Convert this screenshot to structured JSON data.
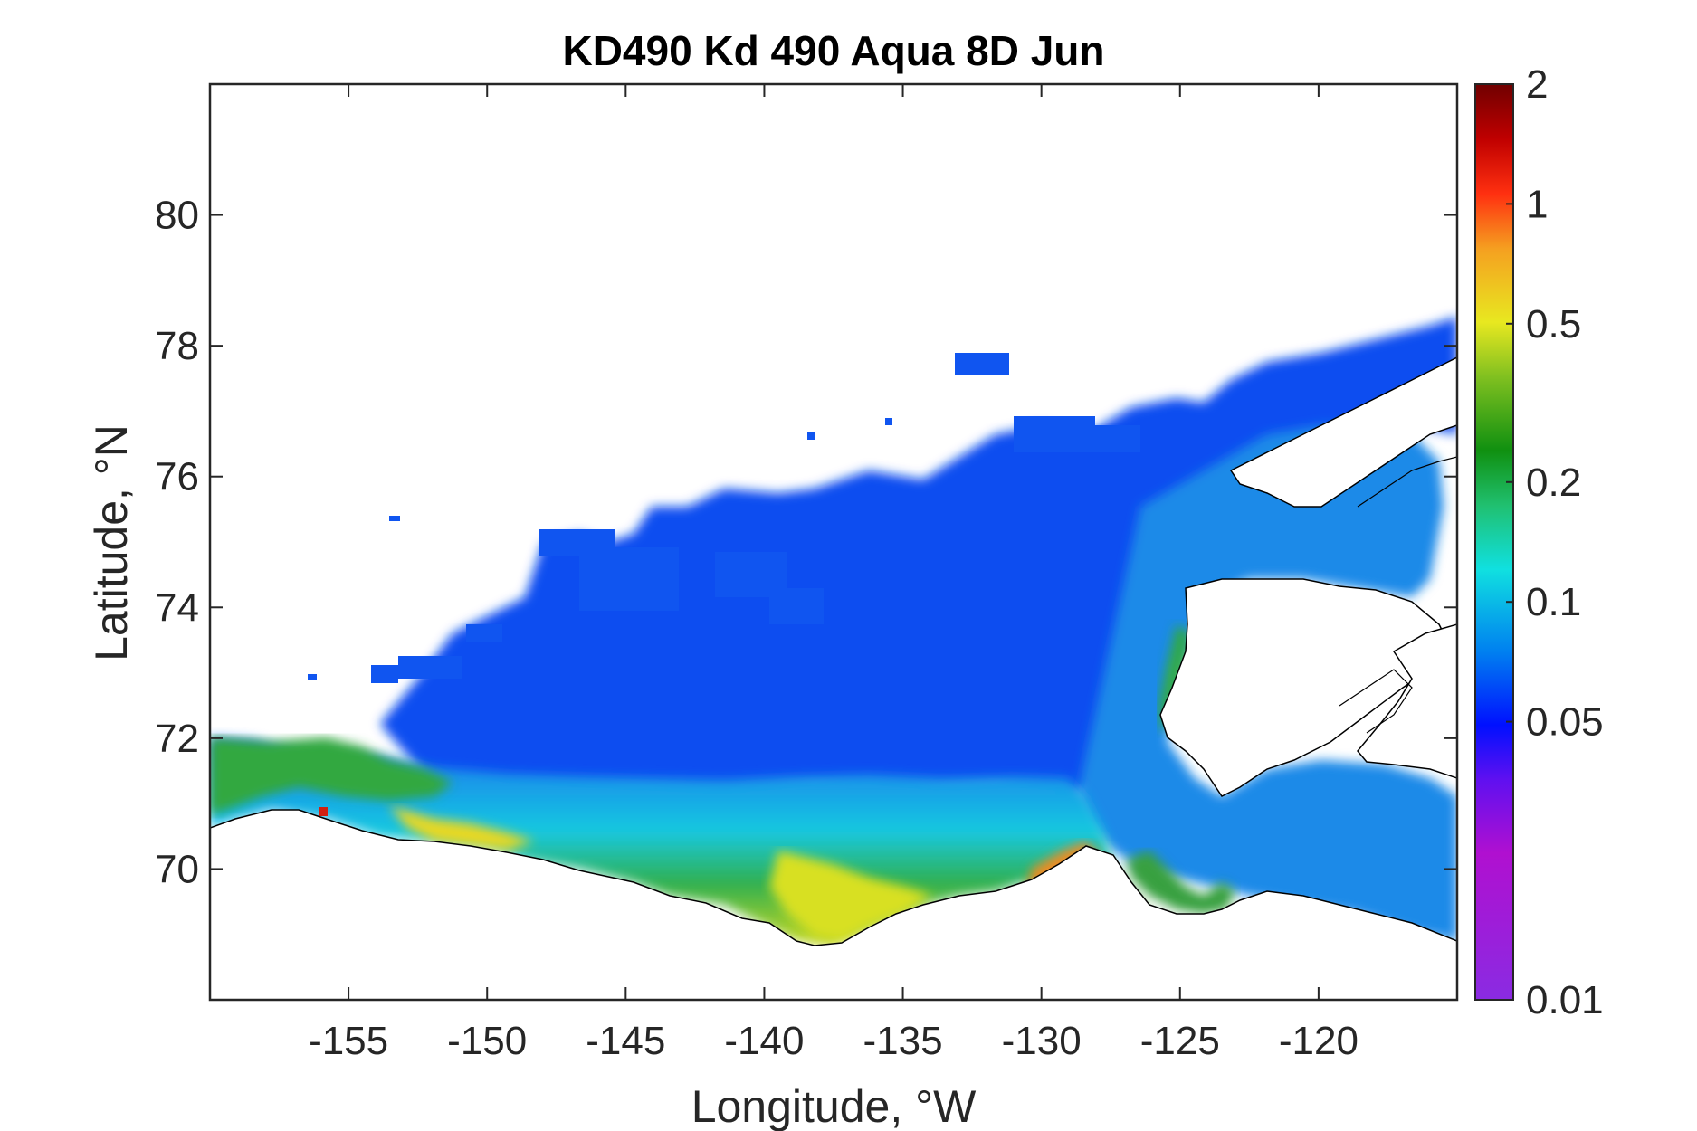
{
  "title": "KD490 Kd 490 Aqua 8D Jun",
  "xaxis": {
    "label": "Longitude, °W",
    "ticks": [
      "-155",
      "-150",
      "-145",
      "-140",
      "-135",
      "-130",
      "-125",
      "-120"
    ],
    "tick_values": [
      -155,
      -150,
      -145,
      -140,
      -135,
      -130,
      -125,
      -120
    ],
    "range": [
      -160,
      -115
    ]
  },
  "yaxis": {
    "label": "Latitude, °N",
    "ticks": [
      "70",
      "72",
      "74",
      "76",
      "78",
      "80"
    ],
    "tick_values": [
      70,
      72,
      74,
      76,
      78,
      80
    ],
    "range": [
      68,
      82
    ]
  },
  "colorbar": {
    "scale": "log",
    "range": [
      0.01,
      2
    ],
    "ticks": [
      "2",
      "1",
      "0.5",
      "0.2",
      "0.1",
      "0.05",
      "0.01"
    ],
    "tick_values": [
      2,
      1,
      0.5,
      0.2,
      0.1,
      0.05,
      0.01
    ],
    "colormap": "rainbow (violet-blue-cyan-green-yellow-orange-red-darkred)"
  },
  "colors": {
    "low_violet": "#8a2be2",
    "blue": "#0a4af0",
    "cyan": "#19d9e0",
    "green": "#22b040",
    "yellow": "#e8e820",
    "orange": "#f5a020",
    "red": "#e02010",
    "dark_red": "#7a0000",
    "coastline": "#000000"
  },
  "chart_data": {
    "type": "heatmap",
    "variable": "KD490 Kd 490",
    "title": "KD490 Kd 490 Aqua 8D Jun",
    "xlabel": "Longitude, °W",
    "ylabel": "Latitude, °N",
    "xlim": [
      -160,
      -115
    ],
    "ylim": [
      68,
      82
    ],
    "value_scale": "log",
    "value_range": [
      0.01,
      2
    ],
    "regions": [
      {
        "lon": [
          -150,
          -128
        ],
        "lat": [
          72,
          76
        ],
        "value": 0.05
      },
      {
        "lon": [
          -130,
          -118
        ],
        "lat": [
          72.5,
          76
        ],
        "value": 0.07
      },
      {
        "lon": [
          -150,
          -128
        ],
        "lat": [
          71,
          72
        ],
        "value": 0.09
      },
      {
        "lon": [
          -145,
          -128
        ],
        "lat": [
          70,
          71
        ],
        "value": 0.2
      },
      {
        "lon": [
          -140,
          -134
        ],
        "lat": [
          69.3,
          70.3
        ],
        "value": 0.35
      },
      {
        "lon": [
          -160,
          -152
        ],
        "lat": [
          70.5,
          72
        ],
        "value": 0.25
      },
      {
        "lon": [
          -151,
          -146
        ],
        "lat": [
          70.3,
          70.8
        ],
        "value": 0.4
      },
      {
        "lon": [
          -131,
          -129.5
        ],
        "lat": [
          69.7,
          70.3
        ],
        "value": 0.7
      },
      {
        "lon": [
          -128,
          -125
        ],
        "lat": [
          69.2,
          70.2
        ],
        "value": 0.08
      },
      {
        "lon": [
          -126,
          -123
        ],
        "lat": [
          69.3,
          71
        ],
        "value": 0.2
      }
    ]
  }
}
